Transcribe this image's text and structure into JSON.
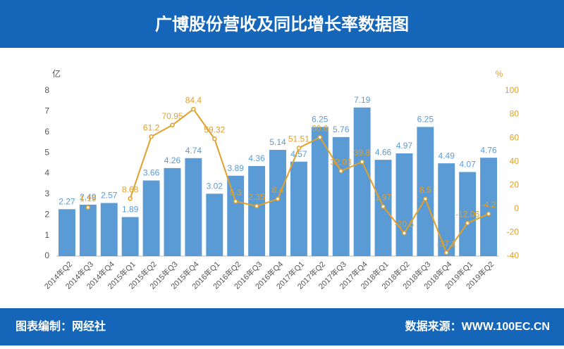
{
  "chart_data": {
    "type": "bar_line",
    "title": "广博股份营收及同比增长率数据图",
    "y_unit": "亿",
    "y2_unit": "%",
    "footer_left": "图表编制：网经社",
    "footer_right": "数据来源：WWW.100EC.CN",
    "categories": [
      "2014年Q2",
      "2014年Q3",
      "2014年Q4",
      "2015年Q1",
      "2015年Q2",
      "2015年Q3",
      "2015年Q4",
      "2016年Q1",
      "2016年Q2",
      "2016年Q3",
      "2016年Q4",
      "2017年Q1",
      "2017年Q2",
      "2017年Q3",
      "2017年Q4",
      "2018年Q1",
      "2018年Q2",
      "2018年Q3",
      "2018年Q4",
      "2019年Q1",
      "2019年Q2"
    ],
    "series": [
      {
        "type": "bar",
        "color": "#5b9bd5",
        "axis": "y",
        "values": [
          2.27,
          2.49,
          2.57,
          1.89,
          3.66,
          4.26,
          4.74,
          3.02,
          3.89,
          4.36,
          5.14,
          4.57,
          6.25,
          5.76,
          7.19,
          4.66,
          4.97,
          6.25,
          4.49,
          4.07,
          4.76
        ]
      },
      {
        "type": "line",
        "color": "#e0a02a",
        "axis": "y2",
        "values": [
          null,
          1.19,
          null,
          8.68,
          61.2,
          70.95,
          84.4,
          59.32,
          6.3,
          2.35,
          8.4,
          51.51,
          60.6,
          32.03,
          39.8,
          1.97,
          -20.5,
          8.5,
          -37.1,
          -12.06,
          -4.2
        ]
      }
    ],
    "ylim": [
      0,
      8
    ],
    "yticks": [
      0,
      1,
      2,
      3,
      4,
      5,
      6,
      7,
      8
    ],
    "y2lim": [
      -40,
      100
    ],
    "y2ticks": [
      -40,
      -20,
      0,
      20,
      40,
      60,
      80,
      100
    ]
  }
}
